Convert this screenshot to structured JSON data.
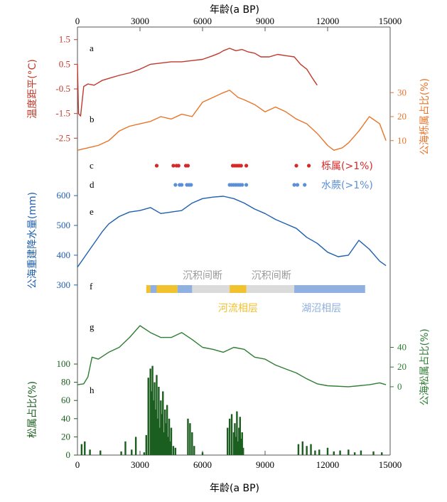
{
  "chart_data": {
    "type": "line",
    "x_axis": {
      "title": "年龄(a BP)",
      "range": [
        0,
        15000
      ],
      "ticks": [
        0,
        3000,
        6000,
        9000,
        12000,
        15000
      ],
      "tick_labels": [
        "0",
        "3000",
        "6000",
        "9000",
        "12000",
        "15000"
      ]
    },
    "panels": [
      {
        "id": "a",
        "label": "a",
        "color": "#c0392b",
        "axis_side": "left",
        "axis_title": "温度距平(°C)",
        "range": [
          -2.75,
          1.55
        ],
        "ticks": [
          1.5,
          0.5,
          -0.5,
          -1.5,
          -2.5
        ],
        "tick_labels": [
          "1.5",
          "0.5",
          "-0.5",
          "-1.5",
          "-2.5"
        ],
        "series": {
          "x": [
            0,
            50,
            150,
            300,
            500,
            800,
            1200,
            1600,
            2000,
            2500,
            3000,
            3500,
            4000,
            4500,
            5000,
            5500,
            6000,
            6500,
            6800,
            7000,
            7300,
            7600,
            7900,
            8200,
            8500,
            8800,
            9200,
            9600,
            10000,
            10400,
            10700,
            11000,
            11300,
            11500
          ],
          "y": [
            0.5,
            -1.5,
            -1.6,
            -0.4,
            -0.3,
            -0.35,
            -0.15,
            -0.05,
            0.05,
            0.15,
            0.3,
            0.5,
            0.55,
            0.6,
            0.6,
            0.65,
            0.7,
            0.85,
            0.95,
            1.05,
            1.15,
            1.05,
            1.1,
            1.0,
            0.95,
            0.8,
            0.8,
            0.9,
            0.85,
            0.8,
            0.5,
            0.3,
            -0.1,
            -0.35
          ]
        }
      },
      {
        "id": "b",
        "label": "b",
        "color": "#e8742a",
        "axis_side": "right",
        "axis_title": "公海栎属占比(%)",
        "range": [
          4,
          36
        ],
        "ticks": [
          30,
          20,
          10
        ],
        "tick_labels": [
          "30",
          "20",
          "10"
        ],
        "series": {
          "x": [
            0,
            500,
            1000,
            1500,
            2000,
            2500,
            3000,
            3500,
            4000,
            4500,
            5000,
            5500,
            6000,
            6500,
            7000,
            7300,
            7700,
            8000,
            8500,
            9000,
            9500,
            10000,
            10500,
            11000,
            11500,
            12000,
            12300,
            12700,
            13000,
            13500,
            14000,
            14500,
            14800
          ],
          "y": [
            6,
            7,
            8,
            10,
            14,
            16,
            17,
            18,
            20,
            19,
            21,
            20,
            26,
            28,
            30,
            31,
            28,
            27,
            25,
            22,
            24,
            22,
            19,
            17,
            13,
            8,
            6,
            7,
            9,
            14,
            20,
            17,
            10
          ]
        }
      },
      {
        "id": "c",
        "label": "c",
        "color": "#d62828",
        "name": "栎属(>1%)",
        "type": "scatter",
        "x": [
          3800,
          4600,
          4750,
          4850,
          5200,
          5300,
          7450,
          7550,
          7650,
          7750,
          7850,
          8100,
          10500,
          11100
        ]
      },
      {
        "id": "d",
        "label": "d",
        "color": "#5b8fd6",
        "name": "水蕨(>1%)",
        "type": "scatter",
        "x": [
          4700,
          4900,
          5000,
          5250,
          5350,
          5450,
          7300,
          7400,
          7500,
          7600,
          7700,
          7800,
          7900,
          8100,
          10400,
          10550,
          10900
        ]
      },
      {
        "id": "e",
        "label": "e",
        "color": "#1f5fb0",
        "axis_side": "left",
        "axis_title": "公海重建降水量(mm)",
        "range": [
          290,
          660
        ],
        "ticks": [
          600,
          500,
          400,
          300
        ],
        "tick_labels": [
          "600",
          "500",
          "400",
          "300"
        ],
        "series": {
          "x": [
            0,
            300,
            600,
            900,
            1200,
            1500,
            2000,
            2500,
            3000,
            3500,
            4000,
            4500,
            5000,
            5500,
            6000,
            6500,
            7000,
            7500,
            8000,
            8500,
            9000,
            9500,
            10000,
            10500,
            11000,
            11500,
            12000,
            12500,
            13000,
            13500,
            14000,
            14500,
            14800
          ],
          "y": [
            360,
            390,
            420,
            450,
            480,
            505,
            530,
            545,
            550,
            560,
            540,
            545,
            550,
            575,
            590,
            595,
            598,
            590,
            575,
            555,
            540,
            520,
            505,
            490,
            460,
            440,
            410,
            395,
            400,
            450,
            420,
            380,
            365
          ]
        }
      },
      {
        "id": "f",
        "label": "f",
        "type": "strata",
        "segments": [
          {
            "start": 3300,
            "end": 3500,
            "facies": "fluvial"
          },
          {
            "start": 3500,
            "end": 3800,
            "facies": "lacustrine"
          },
          {
            "start": 3800,
            "end": 4800,
            "facies": "fluvial"
          },
          {
            "start": 4800,
            "end": 5500,
            "facies": "lacustrine"
          },
          {
            "start": 5500,
            "end": 7300,
            "facies": "hiatus"
          },
          {
            "start": 7300,
            "end": 8100,
            "facies": "fluvial"
          },
          {
            "start": 8100,
            "end": 10400,
            "facies": "hiatus"
          },
          {
            "start": 10400,
            "end": 13800,
            "facies": "lacustrine"
          }
        ],
        "hiatus_labels": [
          {
            "text": "沉积间断",
            "x": 6000
          },
          {
            "text": "沉积间断",
            "x": 9300
          }
        ],
        "facies_labels": [
          {
            "text": "河流相层",
            "x": 7700,
            "color": "#f2c12e"
          },
          {
            "text": "湖沼相层",
            "x": 11700,
            "color": "#8fb0e0"
          }
        ],
        "colors": {
          "fluvial": "#f2c12e",
          "lacustrine": "#8fb0e0",
          "hiatus": "#bdbdbd"
        }
      },
      {
        "id": "g",
        "label": "g",
        "color": "#2e7d32",
        "axis_side": "right",
        "axis_title": "公海松属占比(%)",
        "range": [
          -8,
          75
        ],
        "ticks": [
          40,
          20,
          0
        ],
        "tick_labels": [
          "40",
          "20",
          "0"
        ],
        "series": {
          "x": [
            0,
            300,
            500,
            700,
            1000,
            1500,
            2000,
            2500,
            3000,
            3500,
            4000,
            4500,
            5000,
            5500,
            6000,
            6500,
            7000,
            7500,
            8000,
            8500,
            9000,
            9500,
            10000,
            10500,
            11000,
            11500,
            12000,
            13000,
            14000,
            14500,
            14800
          ],
          "y": [
            2,
            3,
            10,
            30,
            28,
            35,
            40,
            50,
            62,
            55,
            50,
            50,
            55,
            48,
            40,
            38,
            35,
            40,
            38,
            30,
            28,
            22,
            18,
            14,
            8,
            3,
            1,
            0,
            2,
            4,
            2
          ]
        }
      },
      {
        "id": "h",
        "label": "h",
        "color": "#1b5e20",
        "type": "bar",
        "axis_side": "left",
        "axis_title": "松属占比(%)",
        "range": [
          0,
          125
        ],
        "ticks": [
          100,
          80,
          60,
          40,
          20,
          0
        ],
        "tick_labels": [
          "100",
          "80",
          "60",
          "40",
          "20",
          "0"
        ],
        "x": [
          200,
          350,
          600,
          1100,
          2100,
          2300,
          2600,
          2800,
          3200,
          3300,
          3400,
          3500,
          3550,
          3600,
          3650,
          3700,
          3750,
          3800,
          3850,
          3900,
          3950,
          4000,
          4050,
          4100,
          4150,
          4200,
          4250,
          4300,
          4350,
          4400,
          4450,
          4500,
          4600,
          4700,
          5300,
          5400,
          5500,
          5600,
          6000,
          7200,
          7300,
          7400,
          7500,
          7550,
          7600,
          7650,
          7700,
          7750,
          7800,
          7850,
          7900,
          7950,
          10600,
          10800,
          11000,
          11200,
          11400,
          11600,
          12000,
          12300,
          12600,
          13000,
          13300,
          13600,
          14200,
          14600
        ],
        "values": [
          12,
          15,
          6,
          5,
          4,
          15,
          6,
          20,
          3,
          22,
          85,
          95,
          70,
          98,
          60,
          80,
          50,
          88,
          40,
          75,
          30,
          60,
          45,
          70,
          25,
          50,
          35,
          55,
          20,
          40,
          15,
          30,
          10,
          8,
          40,
          35,
          25,
          10,
          3,
          30,
          40,
          45,
          25,
          35,
          20,
          48,
          15,
          30,
          42,
          18,
          25,
          8,
          12,
          15,
          10,
          12,
          5,
          6,
          8,
          4,
          5,
          6,
          3,
          5,
          4,
          3
        ]
      }
    ]
  }
}
